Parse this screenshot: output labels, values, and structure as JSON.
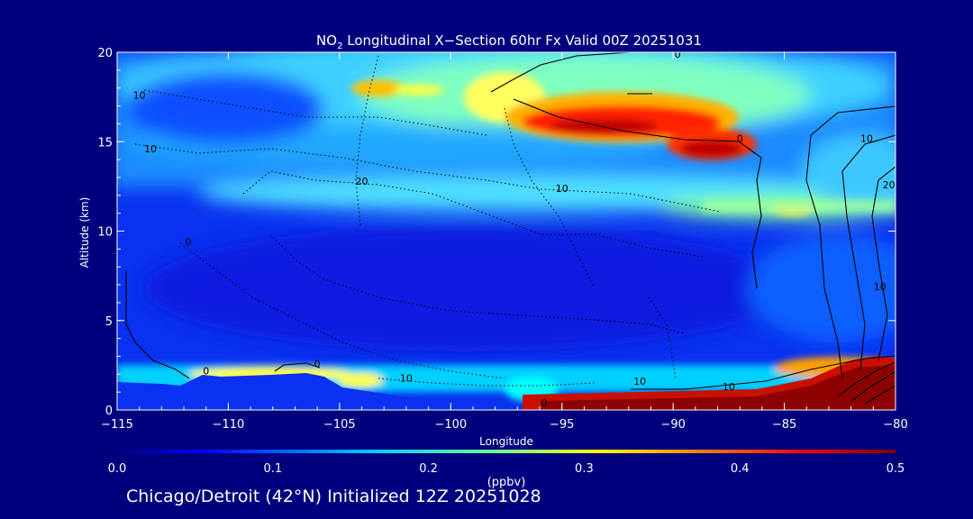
{
  "chart_data": {
    "type": "heatmap",
    "title_prefix": "NO",
    "title_subscript": "2",
    "title_rest": " Longitudinal X−Section 60hr  Fx Valid 00Z 20251031",
    "xlabel": "Longitude",
    "ylabel": "Altitude (km)",
    "xlim": [
      -115,
      -80
    ],
    "ylim": [
      0,
      20
    ],
    "x_ticks": [
      -115,
      -110,
      -105,
      -100,
      -95,
      -90,
      -85,
      -80
    ],
    "x_tick_labels": [
      "−115",
      "−110",
      "−105",
      "−100",
      "−95",
      "−90",
      "−85",
      "−80"
    ],
    "y_ticks": [
      0,
      5,
      10,
      15,
      20
    ],
    "y_tick_labels": [
      "0",
      "5",
      "10",
      "15",
      "20"
    ],
    "colorbar": {
      "label": "(ppbv)",
      "min": 0.0,
      "max": 0.5,
      "ticks": [
        0.0,
        0.1,
        0.2,
        0.3,
        0.4,
        0.5
      ],
      "tick_labels": [
        "0.0",
        "0.1",
        "0.2",
        "0.3",
        "0.4",
        "0.5"
      ],
      "colormap": [
        "#00007f",
        "#0000ff",
        "#007fff",
        "#00ffff",
        "#7fff7f",
        "#ffff00",
        "#ff7f00",
        "#ff0000",
        "#7f0000"
      ]
    },
    "contour_labels": [
      {
        "text": "0",
        "lon": -89.8,
        "alt": 19.9
      },
      {
        "text": "10",
        "lon": -114.0,
        "alt": 17.6
      },
      {
        "text": "10",
        "lon": -113.5,
        "alt": 14.6
      },
      {
        "text": "0",
        "lon": -87.0,
        "alt": 15.2
      },
      {
        "text": "10",
        "lon": -81.3,
        "alt": 15.2
      },
      {
        "text": "20",
        "lon": -104.0,
        "alt": 12.8
      },
      {
        "text": "10",
        "lon": -95.0,
        "alt": 12.4
      },
      {
        "text": "20",
        "lon": -80.3,
        "alt": 12.6
      },
      {
        "text": "0",
        "lon": -111.8,
        "alt": 9.4
      },
      {
        "text": "10",
        "lon": -80.7,
        "alt": 6.9
      },
      {
        "text": "0",
        "lon": -111.0,
        "alt": 2.2
      },
      {
        "text": "0",
        "lon": -106.0,
        "alt": 2.6
      },
      {
        "text": "10",
        "lon": -102.0,
        "alt": 1.8
      },
      {
        "text": "10",
        "lon": -91.5,
        "alt": 1.6
      },
      {
        "text": "10",
        "lon": -87.5,
        "alt": 1.3
      },
      {
        "text": "0",
        "lon": -95.8,
        "alt": 0.4
      }
    ],
    "footer": "Chicago/Detroit (42°N) Initialized 12Z 20251028"
  }
}
